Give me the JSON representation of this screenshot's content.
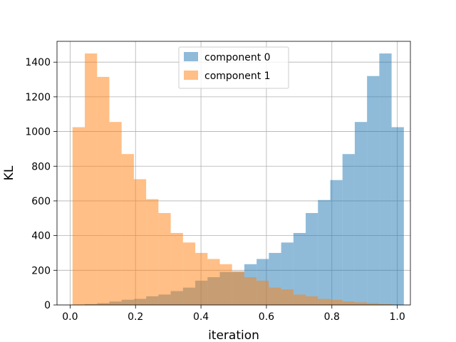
{
  "chart_data": {
    "type": "histogram",
    "xlabel": "iteration",
    "ylabel": "KL",
    "xlim": [
      -0.04,
      1.04
    ],
    "ylim": [
      0,
      1520
    ],
    "xticks": [
      0.0,
      0.2,
      0.4,
      0.6,
      0.8,
      1.0
    ],
    "xtick_labels": [
      "0.0",
      "0.2",
      "0.4",
      "0.6",
      "0.8",
      "1.0"
    ],
    "yticks": [
      0,
      200,
      400,
      600,
      800,
      1000,
      1200,
      1400
    ],
    "ytick_labels": [
      "0",
      "200",
      "400",
      "600",
      "800",
      "1000",
      "1200",
      "1400"
    ],
    "grid": true,
    "legend_position": "top-center",
    "bin_start": 0.0075,
    "bin_width": 0.0375,
    "series": [
      {
        "name": "component 0",
        "color": "#1f77b4",
        "alpha": 0.5,
        "values": [
          0,
          5,
          10,
          20,
          30,
          35,
          50,
          60,
          80,
          100,
          140,
          160,
          190,
          190,
          235,
          265,
          300,
          360,
          415,
          530,
          605,
          720,
          870,
          1055,
          1320,
          1450,
          1025
        ]
      },
      {
        "name": "component 1",
        "color": "#ff7f0e",
        "alpha": 0.5,
        "values": [
          1025,
          1450,
          1315,
          1055,
          870,
          725,
          610,
          530,
          415,
          360,
          300,
          265,
          235,
          195,
          160,
          140,
          100,
          90,
          60,
          50,
          35,
          30,
          20,
          15,
          10,
          5,
          0
        ]
      }
    ]
  }
}
